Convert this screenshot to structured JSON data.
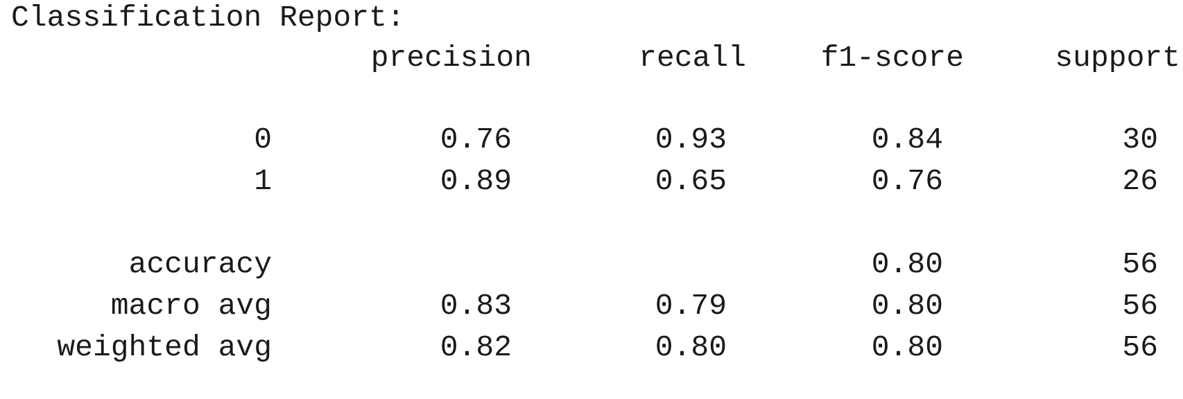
{
  "report": {
    "title": "Classification Report:",
    "headers": {
      "precision": "precision",
      "recall": "recall",
      "f1": "f1-score",
      "support": "support"
    },
    "rows": [
      {
        "label": "0",
        "precision": "0.76",
        "recall": "0.93",
        "f1": "0.84",
        "support": "30"
      },
      {
        "label": "1",
        "precision": "0.89",
        "recall": "0.65",
        "f1": "0.76",
        "support": "26"
      }
    ],
    "accuracy": {
      "label": "accuracy",
      "f1": "0.80",
      "support": "56"
    },
    "macro_avg": {
      "label": "macro avg",
      "precision": "0.83",
      "recall": "0.79",
      "f1": "0.80",
      "support": "56"
    },
    "weighted_avg": {
      "label": "weighted avg",
      "precision": "0.82",
      "recall": "0.80",
      "f1": "0.80",
      "support": "56"
    }
  }
}
